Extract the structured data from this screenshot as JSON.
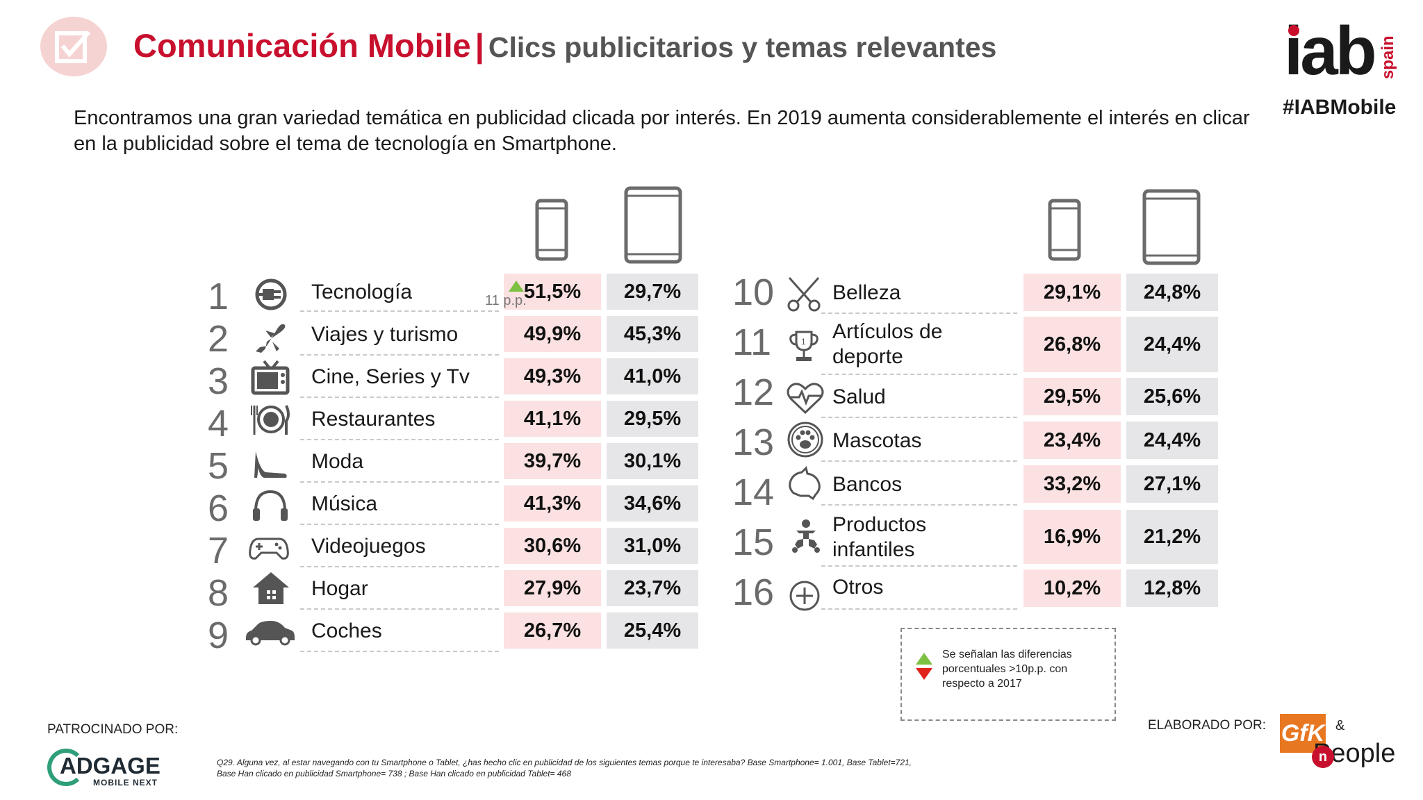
{
  "header": {
    "title": "Comunicación Mobile",
    "separator": "|",
    "subtitle": "Clics publicitarios y temas relevantes",
    "brand_word": "iab",
    "brand_sub": "spain",
    "hashtag": "#IABMobile"
  },
  "intro": "Encontramos una gran variedad temática en publicidad clicada por interés. En 2019 aumenta considerablemente el interés en clicar en la publicidad sobre el tema de tecnología en Smartphone.",
  "colors": {
    "accent_red": "#c8102e",
    "smartphone_cell": "#fbe1e1",
    "tablet_cell": "#e6e6e8",
    "up_arrow": "#7cc142",
    "down_arrow": "#e0241b"
  },
  "left_table": {
    "rows": [
      {
        "rank": "1",
        "icon": "plug-icon",
        "label": "Tecnología",
        "smartphone": "51,5%",
        "tablet": "29,7%"
      },
      {
        "rank": "2",
        "icon": "airplane-icon",
        "label": "Viajes y turismo",
        "smartphone": "49,9%",
        "tablet": "45,3%"
      },
      {
        "rank": "3",
        "icon": "tv-icon",
        "label": "Cine, Series y Tv",
        "smartphone": "49,3%",
        "tablet": "41,0%"
      },
      {
        "rank": "4",
        "icon": "dinner-plate-icon",
        "label": "Restaurantes",
        "smartphone": "41,1%",
        "tablet": "29,5%"
      },
      {
        "rank": "5",
        "icon": "high-heel-icon",
        "label": "Moda",
        "smartphone": "39,7%",
        "tablet": "30,1%"
      },
      {
        "rank": "6",
        "icon": "headphones-icon",
        "label": "Música",
        "smartphone": "41,3%",
        "tablet": "34,6%"
      },
      {
        "rank": "7",
        "icon": "gamepad-icon",
        "label": "Videojuegos",
        "smartphone": "30,6%",
        "tablet": "31,0%"
      },
      {
        "rank": "8",
        "icon": "house-icon",
        "label": "Hogar",
        "smartphone": "27,9%",
        "tablet": "23,7%"
      },
      {
        "rank": "9",
        "icon": "car-icon",
        "label": "Coches",
        "smartphone": "26,7%",
        "tablet": "25,4%"
      }
    ],
    "highlight_note": "11 p.p."
  },
  "right_table": {
    "rows": [
      {
        "rank": "10",
        "icon": "scissors-icon",
        "label": "Belleza",
        "smartphone": "29,1%",
        "tablet": "24,8%"
      },
      {
        "rank": "11",
        "icon": "trophy-icon",
        "label": "Artículos de deporte",
        "smartphone": "26,8%",
        "tablet": "24,4%"
      },
      {
        "rank": "12",
        "icon": "heart-pulse-icon",
        "label": "Salud",
        "smartphone": "29,5%",
        "tablet": "25,6%"
      },
      {
        "rank": "13",
        "icon": "paw-icon",
        "label": "Mascotas",
        "smartphone": "23,4%",
        "tablet": "24,4%"
      },
      {
        "rank": "14",
        "icon": "piggy-bank-icon",
        "label": "Bancos",
        "smartphone": "33,2%",
        "tablet": "27,1%"
      },
      {
        "rank": "15",
        "icon": "baby-icon",
        "label": "Productos infantiles",
        "smartphone": "16,9%",
        "tablet": "21,2%"
      },
      {
        "rank": "16",
        "icon": "plus-circle-icon",
        "label": "Otros",
        "smartphone": "10,2%",
        "tablet": "12,8%"
      }
    ]
  },
  "legend": {
    "text": "Se señalan las diferencias porcentuales  >10p.p. con respecto a 2017"
  },
  "footer": {
    "sponsored_label": "PATROCINADO POR:",
    "sponsor_word": "ADGAGE",
    "sponsor_sub": "MOBILE NEXT",
    "footnote": "Q29. Alguna vez, al estar navegando con tu Smartphone o Tablet, ¿has hecho clic en publicidad de los siguientes temas porque te interesaba? Base Smartphone= 1.001, Base Tablet=721, Base Han clicado en publicidad Smartphone= 738 ; Base Han clicado en publicidad Tablet= 468",
    "made_by_label": "ELABORADO POR:",
    "maker_gfk": "GfK",
    "maker_amp": "&",
    "maker_n": "n",
    "maker_people": "People"
  }
}
